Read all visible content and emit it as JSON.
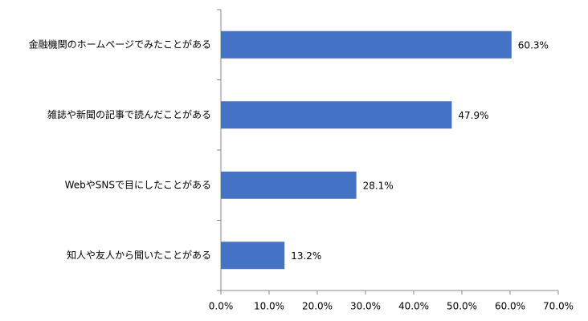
{
  "chart_data": {
    "type": "barh",
    "categories": [
      "金融機関のホームページでみたことがある",
      "雑誌や新聞の記事で読んだことがある",
      "WebやSNSで目にしたことがある",
      "知人や友人から聞いたことがある"
    ],
    "values": [
      60.3,
      47.9,
      28.1,
      13.2
    ],
    "value_labels": [
      "60.3%",
      "47.9%",
      "28.1%",
      "13.2%"
    ],
    "color": "#4472c4",
    "xlim": [
      0,
      70
    ],
    "xticks": [
      {
        "value": 0,
        "label": "0.0%"
      },
      {
        "value": 10,
        "label": "10.0%"
      },
      {
        "value": 20,
        "label": "20.0%"
      },
      {
        "value": 30,
        "label": "30.0%"
      },
      {
        "value": 40,
        "label": "40.0%"
      },
      {
        "value": 50,
        "label": "50.0%"
      },
      {
        "value": 60,
        "label": "60.0%"
      },
      {
        "value": 70,
        "label": "70.0%"
      }
    ],
    "grid": false
  }
}
